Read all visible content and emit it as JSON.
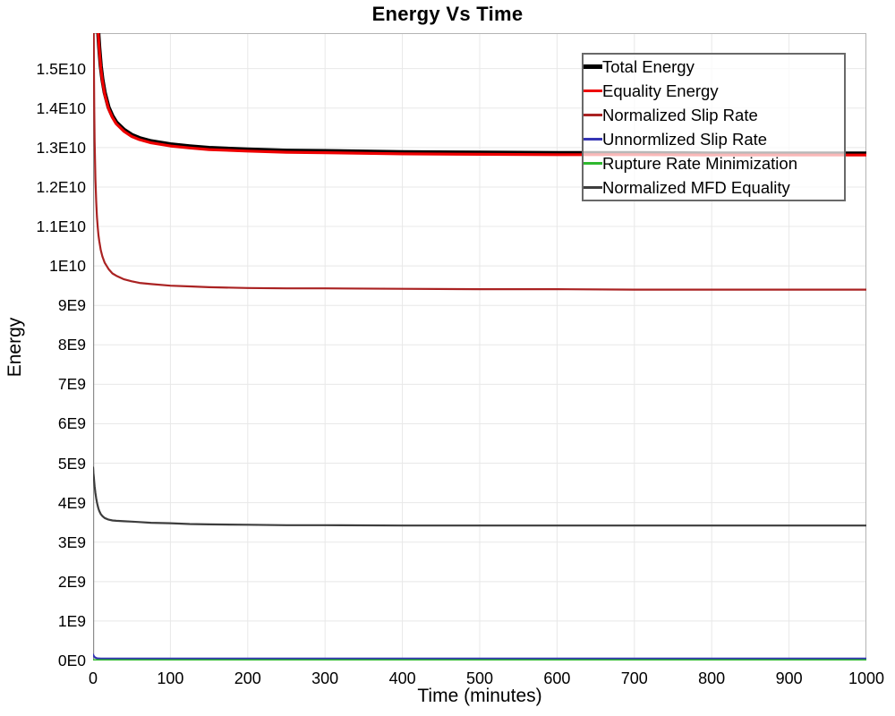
{
  "chart_data": {
    "type": "line",
    "title": "Energy Vs Time",
    "xlabel": "Time (minutes)",
    "ylabel": "Energy",
    "xlim": [
      0,
      1000
    ],
    "ylim": [
      0,
      15900000000.0
    ],
    "grid": true,
    "legend_position": "top-right",
    "colors": {
      "grid": "#e8e8e8",
      "plot_border": "#b4b4b4",
      "axis_line": "#8c8c8c",
      "legend_border": "#696969"
    },
    "x_ticks": [
      0,
      100,
      200,
      300,
      400,
      500,
      600,
      700,
      800,
      900,
      1000
    ],
    "y_ticks": [
      {
        "value": 0,
        "label": "0E0"
      },
      {
        "value": 1000000000.0,
        "label": "1E9"
      },
      {
        "value": 2000000000.0,
        "label": "2E9"
      },
      {
        "value": 3000000000.0,
        "label": "3E9"
      },
      {
        "value": 4000000000.0,
        "label": "4E9"
      },
      {
        "value": 5000000000.0,
        "label": "5E9"
      },
      {
        "value": 6000000000.0,
        "label": "6E9"
      },
      {
        "value": 7000000000.0,
        "label": "7E9"
      },
      {
        "value": 8000000000.0,
        "label": "8E9"
      },
      {
        "value": 9000000000.0,
        "label": "9E9"
      },
      {
        "value": 10000000000.0,
        "label": "1E10"
      },
      {
        "value": 11000000000.0,
        "label": "1.1E10"
      },
      {
        "value": 12000000000.0,
        "label": "1.2E10"
      },
      {
        "value": 13000000000.0,
        "label": "1.3E10"
      },
      {
        "value": 14000000000.0,
        "label": "1.4E10"
      },
      {
        "value": 15000000000.0,
        "label": "1.5E10"
      }
    ],
    "x": [
      0,
      0.5,
      1,
      1.5,
      2,
      3,
      4,
      5,
      6,
      7,
      8,
      10,
      12,
      15,
      20,
      25,
      30,
      40,
      50,
      60,
      75,
      100,
      125,
      150,
      200,
      250,
      300,
      400,
      500,
      600,
      700,
      800,
      900,
      1000
    ],
    "series": [
      {
        "name": "Total Energy",
        "color": "#000000",
        "line_width": 4.6,
        "values": [
          29070000000.0,
          25200000000.0,
          22820000000.0,
          21210000000.0,
          20040000000.0,
          18470000000.0,
          17460000000.0,
          16760000000.0,
          16240000000.0,
          15840000000.0,
          15530000000.0,
          15060000000.0,
          14730000000.0,
          14390000000.0,
          14020000000.0,
          13800000000.0,
          13640000000.0,
          13450000000.0,
          13320000000.0,
          13240000000.0,
          13160000000.0,
          13080000000.0,
          13030000000.0,
          12990000000.0,
          12950000000.0,
          12920000000.0,
          12910000000.0,
          12880000000.0,
          12870000000.0,
          12860000000.0,
          12860000000.0,
          12850000000.0,
          12850000000.0,
          12850000000.0
        ]
      },
      {
        "name": "Equality Energy",
        "color": "#ee0000",
        "line_width": 3.2,
        "values": [
          29030000000.0,
          25160000000.0,
          22780000000.0,
          21170000000.0,
          20000000000.0,
          18430000000.0,
          17420000000.0,
          16720000000.0,
          16200000000.0,
          15800000000.0,
          15490000000.0,
          15020000000.0,
          14690000000.0,
          14350000000.0,
          13980000000.0,
          13760000000.0,
          13600000000.0,
          13410000000.0,
          13280000000.0,
          13200000000.0,
          13120000000.0,
          13040000000.0,
          12990000000.0,
          12950000000.0,
          12910000000.0,
          12880000000.0,
          12870000000.0,
          12840000000.0,
          12830000000.0,
          12820000000.0,
          12820000000.0,
          12810000000.0,
          12810000000.0,
          12810000000.0
        ]
      },
      {
        "name": "Normalized Slip Rate",
        "color": "#aa2222",
        "line_width": 2.2,
        "values": [
          21610000000.0,
          17250000000.0,
          15180000000.0,
          13970000000.0,
          13180000000.0,
          12210000000.0,
          11630000000.0,
          11250000000.0,
          10980000000.0,
          10780000000.0,
          10630000000.0,
          10400000000.0,
          10240000000.0,
          10080000000.0,
          9920000000.0,
          9810000000.0,
          9750000000.0,
          9660000000.0,
          9610000000.0,
          9570000000.0,
          9540000000.0,
          9500000000.0,
          9480000000.0,
          9460000000.0,
          9440000000.0,
          9430000000.0,
          9430000000.0,
          9420000000.0,
          9410000000.0,
          9410000000.0,
          9400000000.0,
          9400000000.0,
          9400000000.0,
          9400000000.0
        ]
      },
      {
        "name": "Unnormlized Slip Rate",
        "color": "#3434b4",
        "line_width": 2.2,
        "values": [
          150000000.0,
          128000000.0,
          111000000.0,
          97000000.0,
          87000000.0,
          72000000.0,
          64000000.0,
          58000000.0,
          55000000.0,
          53000000.0,
          52000000.0,
          51000000.0,
          50000000.0,
          50000000.0,
          50000000.0,
          50000000.0,
          50000000.0,
          50000000.0,
          50000000.0,
          50000000.0,
          50000000.0,
          50000000.0,
          50000000.0,
          50000000.0,
          50000000.0,
          50000000.0,
          50000000.0,
          50000000.0,
          50000000.0,
          50000000.0,
          50000000.0,
          50000000.0,
          50000000.0,
          50000000.0
        ]
      },
      {
        "name": "Rupture Rate Minimization",
        "color": "#2eb82e",
        "line_width": 2.2,
        "values": [
          10000000.0,
          10000000.0,
          10000000.0,
          10000000.0,
          10000000.0,
          10000000.0,
          10000000.0,
          10000000.0,
          10000000.0,
          10000000.0,
          10000000.0,
          10000000.0,
          10000000.0,
          10000000.0,
          10000000.0,
          10000000.0,
          10000000.0,
          10000000.0,
          10000000.0,
          10000000.0,
          10000000.0,
          10000000.0,
          10000000.0,
          10000000.0,
          10000000.0,
          10000000.0,
          10000000.0,
          10000000.0,
          10000000.0,
          10000000.0,
          10000000.0,
          10000000.0,
          10000000.0,
          10000000.0
        ]
      },
      {
        "name": "Normalized MFD Equality",
        "color": "#3d3d3d",
        "line_width": 2.2,
        "values": [
          4890000000.0,
          4750000000.0,
          4630000000.0,
          4520000000.0,
          4420000000.0,
          4250000000.0,
          4110000000.0,
          4010000000.0,
          3920000000.0,
          3850000000.0,
          3790000000.0,
          3710000000.0,
          3660000000.0,
          3610000000.0,
          3570000000.0,
          3550000000.0,
          3540000000.0,
          3530000000.0,
          3520000000.0,
          3510000000.0,
          3490000000.0,
          3480000000.0,
          3460000000.0,
          3450000000.0,
          3440000000.0,
          3430000000.0,
          3430000000.0,
          3420000000.0,
          3420000000.0,
          3420000000.0,
          3420000000.0,
          3420000000.0,
          3420000000.0,
          3420000000.0
        ]
      }
    ]
  }
}
